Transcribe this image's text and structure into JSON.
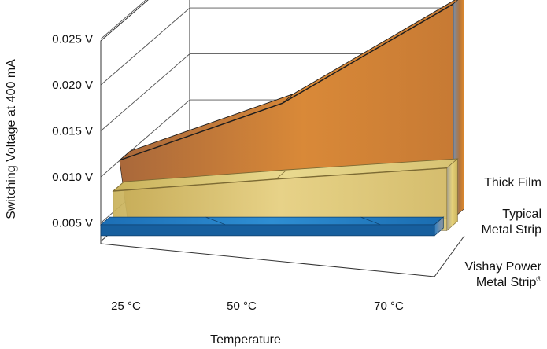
{
  "chart_data": {
    "type": "area",
    "three_d": true,
    "xlabel": "Temperature",
    "ylabel": "Switching Voltage at 400 mA",
    "categories": [
      "25 °C",
      "50 °C",
      "70 °C"
    ],
    "y_ticks": [
      "0.005 V",
      "0.010 V",
      "0.015 V",
      "0.020 V",
      "0.025 V"
    ],
    "ylim": [
      0.003,
      0.026
    ],
    "grid": true,
    "series": [
      {
        "label_lines": [
          "Thick Film"
        ],
        "values": [
          0.0093,
          0.0155,
          0.0263
        ],
        "color": "#d9883a"
      },
      {
        "label_lines": [
          "Typical",
          "Metal Strip"
        ],
        "values": [
          0.0073,
          0.0086,
          0.0098
        ],
        "color": "#e3cf7e"
      },
      {
        "label_lines": [
          "Vishay Power",
          "Metal Strip"
        ],
        "label_mark": "®",
        "values": [
          0.0048,
          0.0048,
          0.0048
        ],
        "color": "#1f7fc8"
      }
    ]
  }
}
